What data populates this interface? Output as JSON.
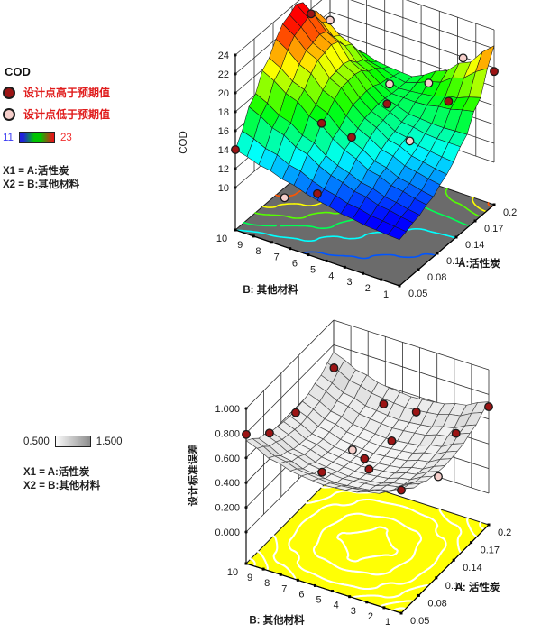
{
  "page": {
    "background": "#ffffff"
  },
  "legend_top": {
    "title": "COD",
    "above_label": "设计点高于预期值",
    "below_label": "设计点低于预期值",
    "above_color": "#9c1414",
    "below_color": "#f6cfcb",
    "label_color": "#e01c1c",
    "scale_min": "11",
    "scale_max": "23",
    "scale_min_color": "#3a3af2",
    "scale_max_color": "#f03030",
    "scale_colors": [
      "#2121dd",
      "#00c400",
      "#e21717"
    ],
    "factor1": "X1 = A:活性炭",
    "factor2": "X2 = B:其他材料"
  },
  "legend_bottom": {
    "scale_min": "0.500",
    "scale_max": "1.500",
    "scale_num_color": "#222222",
    "scale_colors": [
      "#fbfbfb",
      "#8d8d8d"
    ],
    "factor1": "X1 = A:活性炭",
    "factor2": "X2 = B:其他材料"
  },
  "chart_data": [
    {
      "type": "surface3d",
      "name": "cod-response-surface",
      "x_axis": {
        "label": "A:活性炭",
        "ticks": [
          "0.05",
          "0.08",
          "0.11",
          "0.14",
          "0.17",
          "0.2"
        ],
        "range": [
          0.05,
          0.2
        ]
      },
      "y_axis": {
        "label": "B: 其他材料",
        "ticks": [
          "10",
          "9",
          "8",
          "7",
          "6",
          "5",
          "4",
          "3",
          "2",
          "1"
        ],
        "range": [
          1,
          10
        ]
      },
      "z_axis": {
        "label": "COD",
        "ticks": [
          "24",
          "22",
          "20",
          "18",
          "16",
          "14",
          "12",
          "10"
        ],
        "range": [
          10,
          24
        ]
      },
      "colormap": {
        "type": "jet",
        "min": 11,
        "max": 23
      },
      "floor_color": "#6b6b6b",
      "contour_levels": [
        12,
        14,
        16,
        18,
        20,
        22
      ],
      "contour_color": "colormap",
      "surface_grid": [
        [
          14.0,
          17.5,
          20.5,
          23.0,
          23.9,
          21.5,
          17.8
        ],
        [
          13.2,
          16.0,
          18.8,
          20.9,
          21.4,
          19.6,
          17.0
        ],
        [
          12.4,
          14.6,
          16.9,
          18.5,
          18.7,
          17.5,
          16.3
        ],
        [
          11.6,
          13.1,
          14.8,
          16.0,
          16.3,
          16.1,
          16.1
        ],
        [
          11.0,
          12.2,
          13.4,
          14.5,
          15.2,
          16.3,
          17.6
        ],
        [
          10.6,
          11.5,
          12.4,
          13.5,
          14.8,
          17.0,
          19.6
        ],
        [
          10.4,
          11.0,
          11.8,
          13.0,
          14.8,
          17.8,
          22.3
        ]
      ],
      "design_points": [
        {
          "a": 0.05,
          "b": 10,
          "z": 14.0,
          "type": "above"
        },
        {
          "a": 0.17,
          "b": 10,
          "z": 21.5,
          "type": "above"
        },
        {
          "a": 0.05,
          "b": 5.5,
          "z": 12.3,
          "type": "above"
        },
        {
          "a": 0.1,
          "b": 7.0,
          "z": 15.9,
          "type": "above"
        },
        {
          "a": 0.11,
          "b": 5.7,
          "z": 14.7,
          "type": "above"
        },
        {
          "a": 0.14,
          "b": 4.8,
          "z": 17.1,
          "type": "above"
        },
        {
          "a": 0.2,
          "b": 3.5,
          "z": 14.8,
          "type": "above"
        },
        {
          "a": 0.2,
          "b": 1.0,
          "z": 19.6,
          "type": "above"
        },
        {
          "a": 0.2,
          "b": 10,
          "z": 19.1,
          "type": "below"
        },
        {
          "a": 0.05,
          "b": 7.3,
          "z": 10.7,
          "type": "below"
        },
        {
          "a": 0.15,
          "b": 5.0,
          "z": 18.5,
          "type": "below"
        },
        {
          "a": 0.18,
          "b": 3.9,
          "z": 17.6,
          "type": "below"
        },
        {
          "a": 0.2,
          "b": 2.7,
          "z": 19.9,
          "type": "below"
        },
        {
          "a": 0.13,
          "b": 3.2,
          "z": 14.8,
          "type": "below"
        }
      ]
    },
    {
      "type": "surface3d",
      "name": "stderr-design-surface",
      "x_axis": {
        "label": "A: 活性炭",
        "ticks": [
          "0.05",
          "0.08",
          "0.11",
          "0.14",
          "0.17",
          "0.2"
        ],
        "range": [
          0.05,
          0.2
        ]
      },
      "y_axis": {
        "label": "B: 其他材料",
        "ticks": [
          "10",
          "9",
          "8",
          "7",
          "6",
          "5",
          "4",
          "3",
          "2",
          "1"
        ],
        "range": [
          1,
          10
        ]
      },
      "z_axis": {
        "label": "设计标准误差",
        "ticks": [
          "1.000",
          "0.800",
          "0.600",
          "0.400",
          "0.200",
          "0.000"
        ],
        "range": [
          0,
          1
        ]
      },
      "colormap": {
        "type": "gray",
        "min": 0.5,
        "max": 1.5
      },
      "floor_color": "#ffff05",
      "contour_levels": [
        0.44,
        0.48,
        0.54,
        0.6,
        0.66,
        0.72
      ],
      "contour_color": "#ffffff",
      "surface_grid": [
        [
          0.74,
          0.651,
          0.598,
          0.58,
          0.598,
          0.651,
          0.74
        ],
        [
          0.651,
          0.562,
          0.509,
          0.491,
          0.509,
          0.562,
          0.651
        ],
        [
          0.598,
          0.509,
          0.456,
          0.438,
          0.456,
          0.509,
          0.598
        ],
        [
          0.58,
          0.491,
          0.438,
          0.42,
          0.438,
          0.491,
          0.58
        ],
        [
          0.598,
          0.509,
          0.456,
          0.438,
          0.456,
          0.509,
          0.598
        ],
        [
          0.651,
          0.562,
          0.509,
          0.491,
          0.509,
          0.562,
          0.651
        ],
        [
          0.74,
          0.651,
          0.598,
          0.58,
          0.598,
          0.651,
          0.74
        ]
      ],
      "design_points": [
        {
          "a": 0.05,
          "b": 10,
          "z": 0.79,
          "type": "above"
        },
        {
          "a": 0.09,
          "b": 10,
          "z": 0.61,
          "type": "above"
        },
        {
          "a": 0.135,
          "b": 10,
          "z": 0.56,
          "type": "above"
        },
        {
          "a": 0.18,
          "b": 9.3,
          "z": 0.74,
          "type": "above"
        },
        {
          "a": 0.2,
          "b": 1.0,
          "z": 0.7,
          "type": "above"
        },
        {
          "a": 0.2,
          "b": 7.1,
          "z": 0.45,
          "type": "above"
        },
        {
          "a": 0.2,
          "b": 5.2,
          "z": 0.47,
          "type": "above"
        },
        {
          "a": 0.2,
          "b": 2.9,
          "z": 0.4,
          "type": "above"
        },
        {
          "a": 0.14,
          "b": 4.6,
          "z": 0.55,
          "type": "above"
        },
        {
          "a": 0.113,
          "b": 5.0,
          "z": 0.43,
          "type": "above"
        },
        {
          "a": 0.12,
          "b": 5.5,
          "z": 0.46,
          "type": "above"
        },
        {
          "a": 0.05,
          "b": 1.0,
          "z": 0.74,
          "type": "above"
        },
        {
          "a": 0.05,
          "b": 5.6,
          "z": 0.68,
          "type": "above"
        },
        {
          "a": 0.14,
          "b": 1.9,
          "z": 0.38,
          "type": "below"
        },
        {
          "a": 0.12,
          "b": 6.2,
          "z": 0.5,
          "type": "below"
        }
      ]
    }
  ]
}
